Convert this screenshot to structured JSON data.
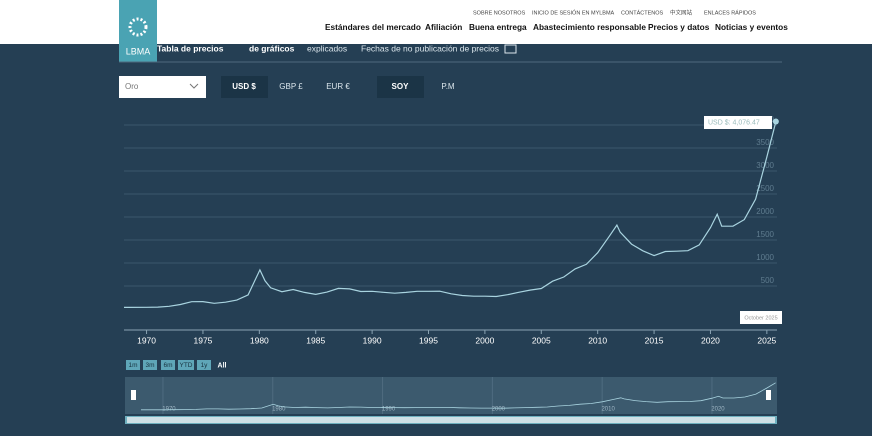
{
  "header": {
    "logo": "LBMA",
    "top_links": [
      "SOBRE NOSOTROS",
      "INICIO DE SESIÓN EN MYLBMA",
      "CONTÁCTENOS",
      "中文网站",
      "ENLACES RÁPIDOS"
    ],
    "nav": [
      "Estándares del mercado",
      "Afiliación",
      "Buena entrega",
      "Abastecimiento responsable",
      "Precios y datos",
      "Noticias y eventos"
    ]
  },
  "subnav": [
    "Tabla de precios",
    "de gráficos",
    "explicados",
    "Fechas de no publicación de precios"
  ],
  "controls": {
    "metal": "Oro",
    "currencies": [
      "USD $",
      "GBP £",
      "EUR €"
    ],
    "times": [
      "SOY",
      "P.M"
    ]
  },
  "chart_data": {
    "type": "line",
    "color": "#a9d4e0",
    "x": [
      1968,
      1970,
      1971,
      1972,
      1973,
      1974,
      1975,
      1976,
      1977,
      1978,
      1979,
      1980.05,
      1980.5,
      1981,
      1982,
      1983,
      1984,
      1985,
      1986,
      1987,
      1988,
      1989,
      1990,
      1991,
      1992,
      1993,
      1994,
      1995,
      1996,
      1997,
      1998,
      1999,
      2000,
      2001,
      2002,
      2003,
      2004,
      2005,
      2006,
      2007,
      2008,
      2009,
      2010,
      2011,
      2011.7,
      2012,
      2013,
      2014,
      2015,
      2016,
      2017,
      2018,
      2019,
      2020,
      2020.6,
      2021,
      2022,
      2023,
      2024,
      2025,
      2025.8
    ],
    "values": [
      35,
      36,
      41,
      58,
      97,
      159,
      161,
      125,
      148,
      193,
      306,
      850,
      612,
      460,
      376,
      424,
      361,
      317,
      368,
      447,
      437,
      381,
      384,
      362,
      344,
      360,
      384,
      384,
      388,
      331,
      294,
      279,
      279,
      271,
      310,
      363,
      410,
      445,
      604,
      695,
      872,
      972,
      1225,
      1572,
      1825,
      1669,
      1411,
      1266,
      1160,
      1251,
      1257,
      1268,
      1393,
      1770,
      2060,
      1799,
      1800,
      1943,
      2386,
      3300,
      4076.47
    ],
    "xlim": [
      1968,
      2025.9
    ],
    "xticks": [
      1970,
      1975,
      1980,
      1985,
      1990,
      1995,
      2000,
      2005,
      2010,
      2015,
      2020,
      2025
    ],
    "ylim": [
      0,
      4500
    ],
    "yticks": [
      500,
      1000,
      1500,
      2000,
      2500,
      3000,
      3500,
      4000
    ],
    "grid": true,
    "tooltip": "USD $: 4,076.47",
    "annotation": "October 2025",
    "navigator_xticks": [
      1970,
      1980,
      1990,
      2000,
      2010,
      2020
    ]
  },
  "range_buttons": [
    "1m",
    "3m",
    "6m",
    "YTD",
    "1y",
    "All"
  ]
}
